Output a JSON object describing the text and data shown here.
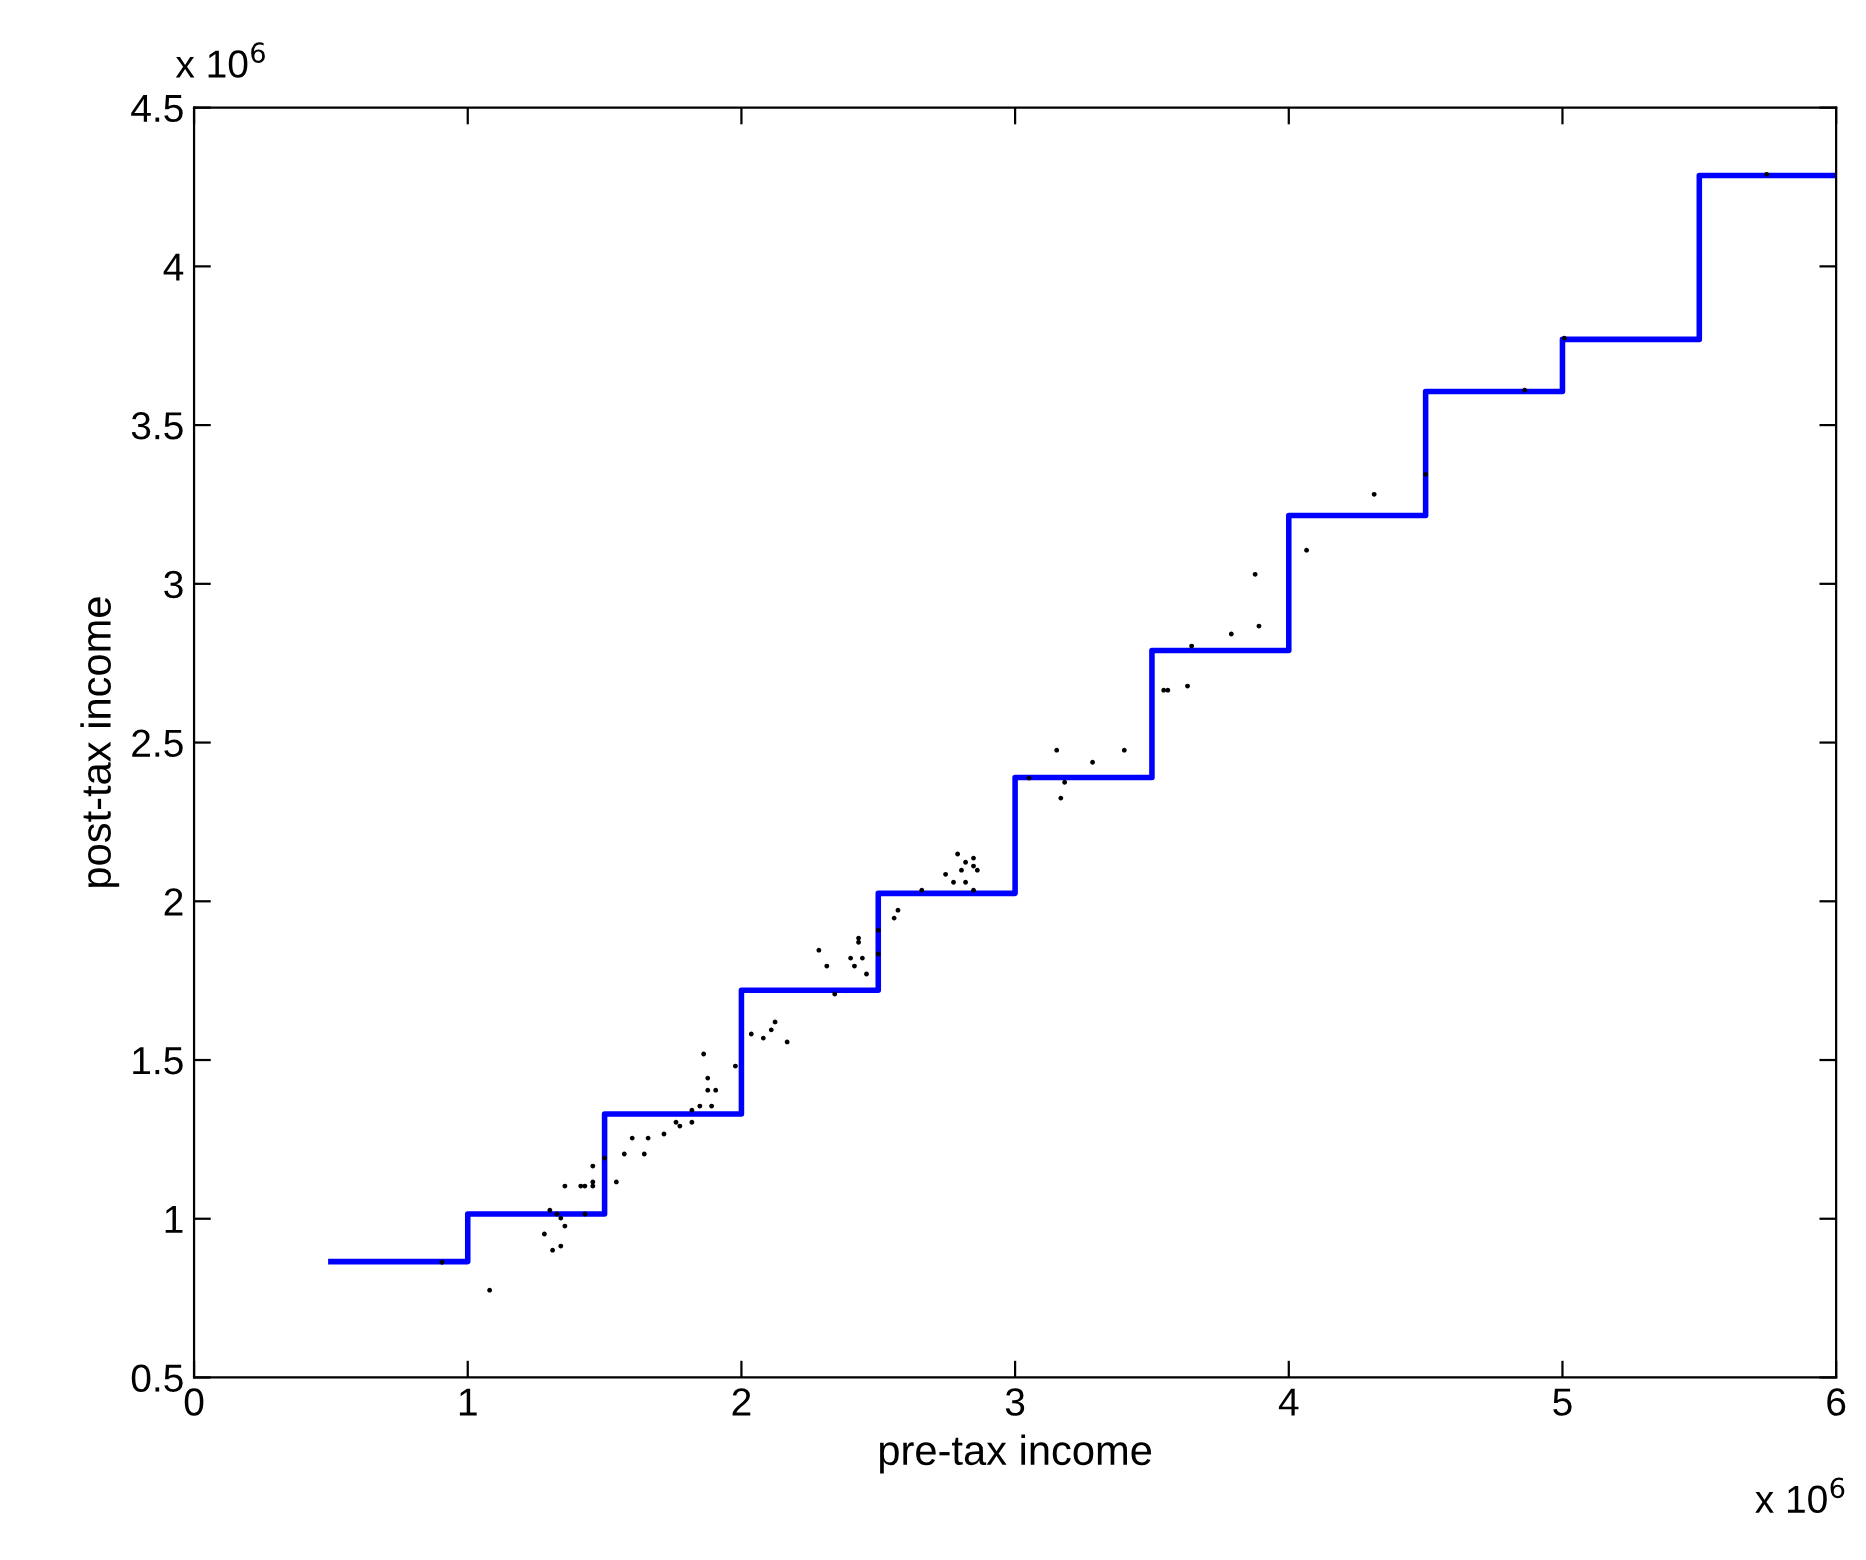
{
  "chart_data": {
    "type": "scatter",
    "xlabel": "pre-tax income",
    "ylabel": "post-tax income",
    "annotations": [
      "x 10$^{6}$",
      "x 10$^{6}$"
    ],
    "xlim": [
      0,
      6
    ],
    "xticks": [
      0,
      1,
      2,
      3,
      4,
      5,
      6
    ],
    "ylim": [
      0.5,
      4.5
    ],
    "yticks": [
      0.5,
      1,
      1.5,
      2,
      2.5,
      3,
      3.5,
      4,
      4.5
    ],
    "grid": false,
    "series": [
      {
        "color": "#000000",
        "marker": "circle",
        "x": [
          0.906,
          1.08,
          1.28,
          1.31,
          1.34,
          1.355,
          1.3,
          1.326,
          1.34,
          1.355,
          1.413,
          1.428,
          1.428,
          1.457,
          1.457,
          1.457,
          1.543,
          1.5,
          1.572,
          1.601,
          1.645,
          1.659,
          1.717,
          1.761,
          1.775,
          1.819,
          1.819,
          1.848,
          1.891,
          1.862,
          1.877,
          1.877,
          1.906,
          1.978,
          2.036,
          2.341,
          2.08,
          2.109,
          2.123,
          2.167,
          2.283,
          2.312,
          2.399,
          2.413,
          2.428,
          2.428,
          2.442,
          2.457,
          2.5,
          2.5,
          2.558,
          2.572,
          2.659,
          2.746,
          2.775,
          2.79,
          2.804,
          2.819,
          2.819,
          2.848,
          2.848,
          2.862,
          2.848,
          3.051,
          3.152,
          3.181,
          3.167,
          3.283,
          3.399,
          3.543,
          3.558,
          3.63,
          3.645,
          3.79,
          3.891,
          3.877,
          4.065,
          4.312,
          4.5,
          4.862,
          5.007,
          5.746
        ],
        "values": [
          0.863,
          0.775,
          0.952,
          0.901,
          0.914,
          0.977,
          1.027,
          1.015,
          1.002,
          1.103,
          1.103,
          1.103,
          1.015,
          1.166,
          1.116,
          1.103,
          1.116,
          1.191,
          1.204,
          1.254,
          1.204,
          1.254,
          1.267,
          1.304,
          1.292,
          1.304,
          1.342,
          1.355,
          1.355,
          1.519,
          1.443,
          1.405,
          1.405,
          1.481,
          1.582,
          1.708,
          1.569,
          1.595,
          1.62,
          1.557,
          1.846,
          1.796,
          1.821,
          1.796,
          1.884,
          1.871,
          1.821,
          1.771,
          1.909,
          1.834,
          1.947,
          1.972,
          2.035,
          2.085,
          2.06,
          2.149,
          2.098,
          2.123,
          2.06,
          2.136,
          2.111,
          2.098,
          2.035,
          2.388,
          2.476,
          2.375,
          2.325,
          2.438,
          2.476,
          2.665,
          2.665,
          2.678,
          2.804,
          2.842,
          2.867,
          3.03,
          3.106,
          3.282,
          3.345,
          3.61,
          3.774,
          4.29
        ]
      },
      {
        "type": "step",
        "color": "#0000ff",
        "marker": "none",
        "line_style": "solid",
        "x": [
          0.5,
          1,
          1.5,
          2,
          2.5,
          3,
          3.5,
          4,
          4.5,
          5,
          5.5,
          6
        ],
        "values": [
          0.865,
          1.015,
          1.33,
          1.72,
          2.025,
          2.39,
          2.79,
          3.215,
          3.606,
          3.77,
          4.286,
          4.286
        ]
      }
    ]
  }
}
